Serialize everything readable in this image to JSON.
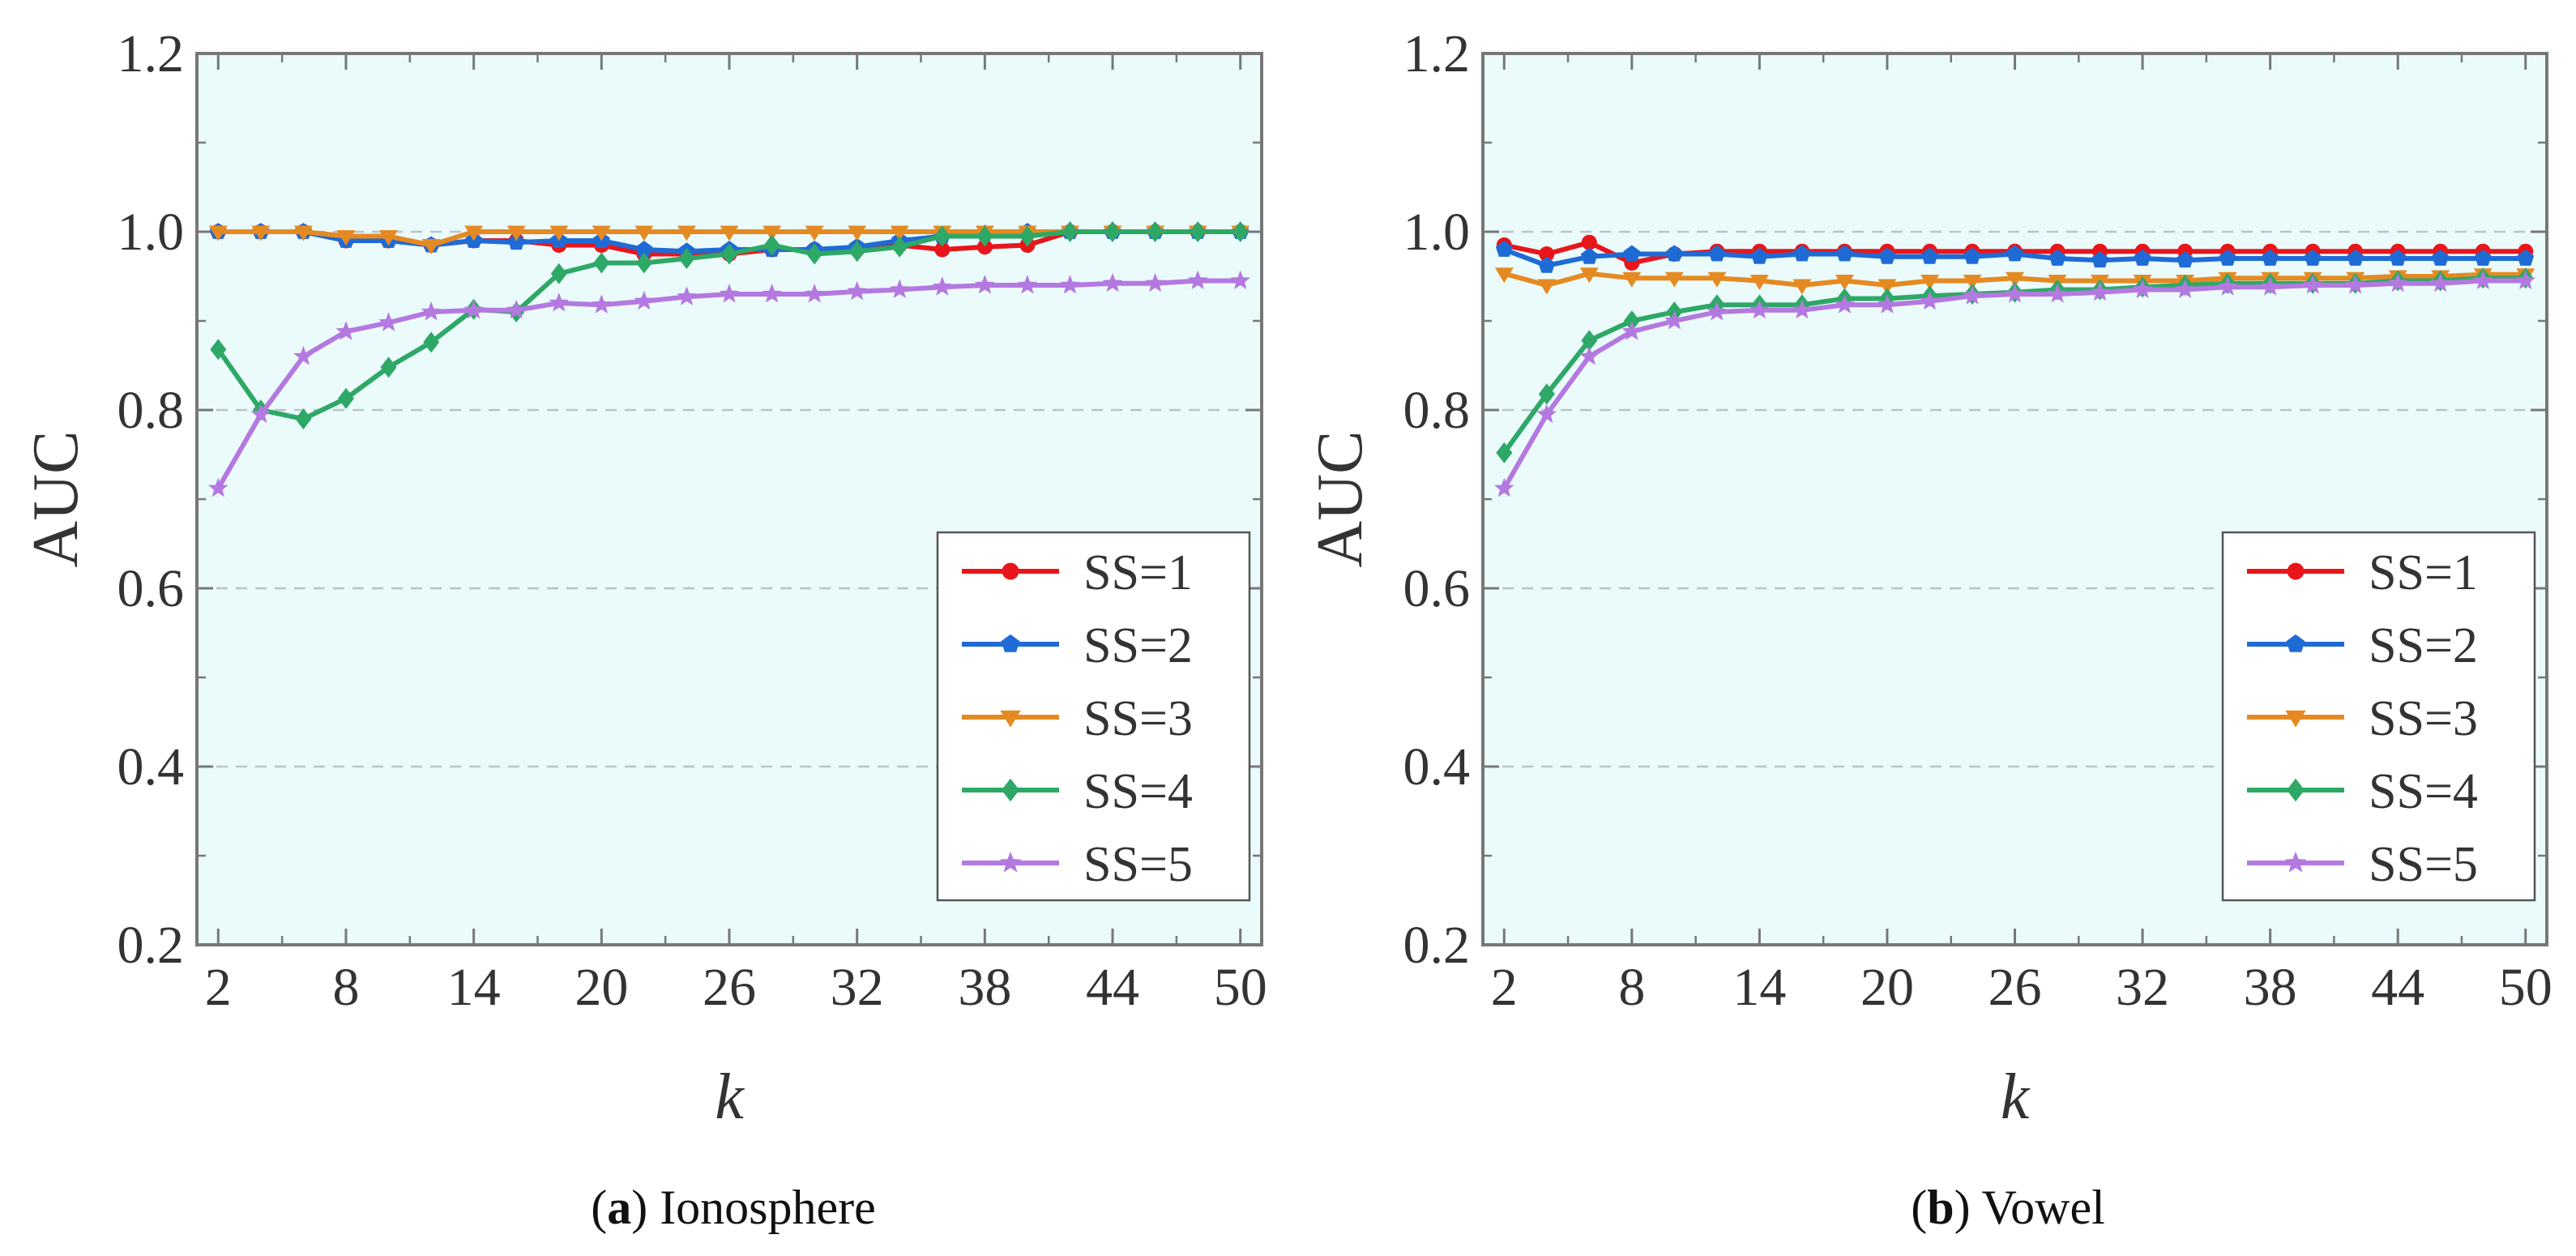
{
  "chart_data": [
    {
      "type": "line",
      "panel": "a",
      "caption_letter": "a",
      "caption_name": "Ionosphere",
      "xlabel": "k",
      "ylabel": "AUC",
      "xlim": [
        1,
        51
      ],
      "ylim": [
        0.2,
        1.2
      ],
      "xticks": [
        2,
        8,
        14,
        20,
        26,
        32,
        38,
        44,
        50
      ],
      "yticks": [
        0.2,
        0.4,
        0.6,
        0.8,
        1.0,
        1.2
      ],
      "ytick_labels": [
        "0.2",
        "0.4",
        "0.6",
        "0.8",
        "1.0",
        "1.2"
      ],
      "grid": "horizontal dashed",
      "background": "#ebfbfc",
      "legend_position": "bottom-right",
      "x": [
        2,
        4,
        6,
        8,
        10,
        12,
        14,
        16,
        18,
        20,
        22,
        24,
        26,
        28,
        30,
        32,
        34,
        36,
        38,
        40,
        42,
        44,
        46,
        48,
        50
      ],
      "series": [
        {
          "name": "SS=1",
          "color": "#e8161b",
          "marker": "circle",
          "values": [
            1.0,
            1.0,
            1.0,
            0.99,
            0.99,
            0.985,
            0.99,
            0.99,
            0.985,
            0.985,
            0.975,
            0.975,
            0.975,
            0.98,
            0.98,
            0.98,
            0.985,
            0.98,
            0.983,
            0.985,
            1.0,
            1.0,
            1.0,
            1.0,
            1.0
          ]
        },
        {
          "name": "SS=2",
          "color": "#1f6bd6",
          "marker": "pentagon",
          "values": [
            1.0,
            1.0,
            1.0,
            0.99,
            0.99,
            0.985,
            0.99,
            0.988,
            0.99,
            0.99,
            0.98,
            0.978,
            0.98,
            0.98,
            0.98,
            0.983,
            0.99,
            0.995,
            0.998,
            1.0,
            1.0,
            1.0,
            1.0,
            1.0,
            1.0
          ]
        },
        {
          "name": "SS=3",
          "color": "#e58a22",
          "marker": "triangle-down",
          "values": [
            1.0,
            1.0,
            1.0,
            0.995,
            0.995,
            0.985,
            1.0,
            1.0,
            1.0,
            1.0,
            1.0,
            1.0,
            1.0,
            1.0,
            1.0,
            1.0,
            1.0,
            1.0,
            1.0,
            1.0,
            1.0,
            1.0,
            1.0,
            1.0,
            1.0
          ]
        },
        {
          "name": "SS=4",
          "color": "#2ea866",
          "marker": "diamond",
          "values": [
            0.868,
            0.8,
            0.79,
            0.813,
            0.848,
            0.876,
            0.913,
            0.91,
            0.953,
            0.965,
            0.965,
            0.97,
            0.975,
            0.985,
            0.975,
            0.978,
            0.983,
            0.995,
            0.995,
            0.995,
            1.0,
            1.0,
            1.0,
            1.0,
            1.0
          ]
        },
        {
          "name": "SS=5",
          "color": "#b479e0",
          "marker": "star",
          "values": [
            0.712,
            0.795,
            0.86,
            0.888,
            0.898,
            0.91,
            0.912,
            0.912,
            0.92,
            0.918,
            0.922,
            0.927,
            0.93,
            0.93,
            0.93,
            0.933,
            0.935,
            0.938,
            0.94,
            0.94,
            0.94,
            0.942,
            0.942,
            0.945,
            0.945
          ]
        }
      ]
    },
    {
      "type": "line",
      "panel": "b",
      "caption_letter": "b",
      "caption_name": "Vowel",
      "xlabel": "k",
      "ylabel": "AUC",
      "xlim": [
        1,
        51
      ],
      "ylim": [
        0.2,
        1.2
      ],
      "xticks": [
        2,
        8,
        14,
        20,
        26,
        32,
        38,
        44,
        50
      ],
      "yticks": [
        0.2,
        0.4,
        0.6,
        0.8,
        1.0,
        1.2
      ],
      "ytick_labels": [
        "0.2",
        "0.4",
        "0.6",
        "0.8",
        "1.0",
        "1.2"
      ],
      "grid": "horizontal dashed",
      "background": "#ebfbfc",
      "legend_position": "bottom-right",
      "x": [
        2,
        4,
        6,
        8,
        10,
        12,
        14,
        16,
        18,
        20,
        22,
        24,
        26,
        28,
        30,
        32,
        34,
        36,
        38,
        40,
        42,
        44,
        46,
        48,
        50
      ],
      "series": [
        {
          "name": "SS=1",
          "color": "#e8161b",
          "marker": "circle",
          "values": [
            0.985,
            0.975,
            0.988,
            0.965,
            0.975,
            0.978,
            0.978,
            0.978,
            0.978,
            0.978,
            0.978,
            0.978,
            0.978,
            0.978,
            0.978,
            0.978,
            0.978,
            0.978,
            0.978,
            0.978,
            0.978,
            0.978,
            0.978,
            0.978,
            0.978
          ]
        },
        {
          "name": "SS=2",
          "color": "#1f6bd6",
          "marker": "pentagon",
          "values": [
            0.98,
            0.962,
            0.972,
            0.975,
            0.975,
            0.975,
            0.972,
            0.975,
            0.975,
            0.972,
            0.972,
            0.972,
            0.975,
            0.97,
            0.968,
            0.97,
            0.968,
            0.97,
            0.97,
            0.97,
            0.97,
            0.97,
            0.97,
            0.97,
            0.97
          ]
        },
        {
          "name": "SS=3",
          "color": "#e58a22",
          "marker": "triangle-down",
          "values": [
            0.953,
            0.94,
            0.953,
            0.948,
            0.948,
            0.948,
            0.945,
            0.94,
            0.945,
            0.94,
            0.945,
            0.945,
            0.948,
            0.945,
            0.945,
            0.945,
            0.945,
            0.948,
            0.948,
            0.948,
            0.948,
            0.95,
            0.95,
            0.952,
            0.952
          ]
        },
        {
          "name": "SS=4",
          "color": "#2ea866",
          "marker": "diamond",
          "values": [
            0.752,
            0.818,
            0.878,
            0.9,
            0.91,
            0.918,
            0.918,
            0.918,
            0.925,
            0.925,
            0.928,
            0.93,
            0.932,
            0.935,
            0.935,
            0.938,
            0.94,
            0.942,
            0.942,
            0.942,
            0.942,
            0.945,
            0.945,
            0.948,
            0.948
          ]
        },
        {
          "name": "SS=5",
          "color": "#b479e0",
          "marker": "star",
          "values": [
            0.712,
            0.795,
            0.86,
            0.888,
            0.9,
            0.91,
            0.912,
            0.912,
            0.918,
            0.918,
            0.922,
            0.928,
            0.93,
            0.93,
            0.932,
            0.935,
            0.935,
            0.938,
            0.938,
            0.94,
            0.94,
            0.942,
            0.942,
            0.945,
            0.945
          ]
        }
      ]
    }
  ]
}
